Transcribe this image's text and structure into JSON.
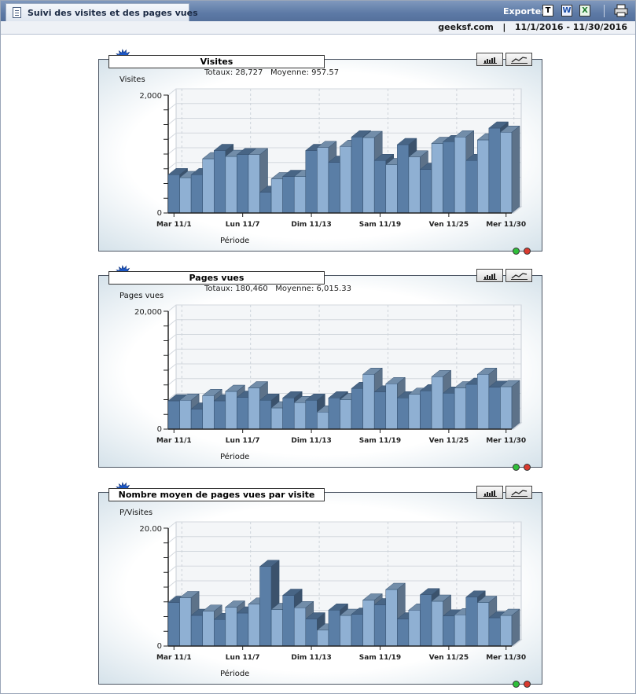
{
  "header": {
    "tab_title": "Suivi des visites et des pages vues",
    "export_label": "Exporter",
    "site": "geeksf.com",
    "date_range": "11/1/2016 - 11/30/2016"
  },
  "icons": {
    "tab": "report-icon",
    "export_text": "text-export-icon",
    "export_word": "word-export-icon",
    "export_excel": "excel-export-icon",
    "print": "print-icon"
  },
  "colors": {
    "bar_dark": "#5a7ea6",
    "bar_light": "#8fb0d3",
    "header_blue": "#5d7aa6"
  },
  "panels": [
    {
      "title": "Visites",
      "totals_label": "Totaux:",
      "totals_value": "28,727",
      "avg_label": "Moyenne:",
      "avg_value": "957.57",
      "ylabel": "Visites",
      "xlabel": "Période",
      "yticks": [
        "2,000",
        "0"
      ],
      "chart_data": {
        "type": "bar",
        "title": "Visites",
        "ylabel": "Visites",
        "xlabel": "Période",
        "ylim": [
          0,
          2000
        ],
        "x_tick_labels": [
          "Mar 11/1",
          "Lun 11/7",
          "Dim 11/13",
          "Sam 11/19",
          "Ven 11/25",
          "Mer 11/30"
        ],
        "values": [
          650,
          600,
          650,
          920,
          1060,
          960,
          990,
          990,
          350,
          580,
          620,
          620,
          1060,
          1110,
          860,
          1130,
          1290,
          1280,
          890,
          820,
          1160,
          950,
          740,
          1180,
          1210,
          1290,
          890,
          1240,
          1440,
          1370
        ]
      }
    },
    {
      "title": "Pages vues",
      "totals_label": "Totaux:",
      "totals_value": "180,460",
      "avg_label": "Moyenne:",
      "avg_value": "6,015.33",
      "ylabel": "Pages vues",
      "xlabel": "Période",
      "yticks": [
        "20,000",
        "0"
      ],
      "chart_data": {
        "type": "bar",
        "title": "Pages vues",
        "ylabel": "Pages vues",
        "xlabel": "Période",
        "ylim": [
          0,
          20000
        ],
        "x_tick_labels": [
          "Mar 11/1",
          "Lun 11/7",
          "Dim 11/13",
          "Sam 11/19",
          "Ven 11/25",
          "Mer 11/30"
        ],
        "values": [
          4800,
          4900,
          3400,
          5700,
          4800,
          6400,
          5400,
          7000,
          4900,
          3600,
          5300,
          4500,
          4900,
          2900,
          5300,
          5000,
          6900,
          9300,
          6300,
          7700,
          5300,
          5900,
          6500,
          8900,
          6100,
          7000,
          7600,
          9300,
          7100,
          7200
        ]
      }
    },
    {
      "title": "Nombre moyen de pages vues par visite",
      "ylabel": "P/Visites",
      "xlabel": "Période",
      "yticks": [
        "20.00",
        "0"
      ],
      "chart_data": {
        "type": "bar",
        "title": "Nombre moyen de pages vues par visite",
        "ylabel": "P/Visites",
        "xlabel": "Période",
        "ylim": [
          0,
          20
        ],
        "x_tick_labels": [
          "Mar 11/1",
          "Lun 11/7",
          "Dim 11/13",
          "Sam 11/19",
          "Ven 11/25",
          "Mer 11/30"
        ],
        "values": [
          7.4,
          8.2,
          5.2,
          5.9,
          4.5,
          6.6,
          5.6,
          7.1,
          13.5,
          6.2,
          8.6,
          6.5,
          4.6,
          2.7,
          6.1,
          5.2,
          5.4,
          7.8,
          7.0,
          9.6,
          4.6,
          6.1,
          8.7,
          7.6,
          5.1,
          5.3,
          8.3,
          7.4,
          4.8,
          5.2
        ]
      }
    }
  ]
}
